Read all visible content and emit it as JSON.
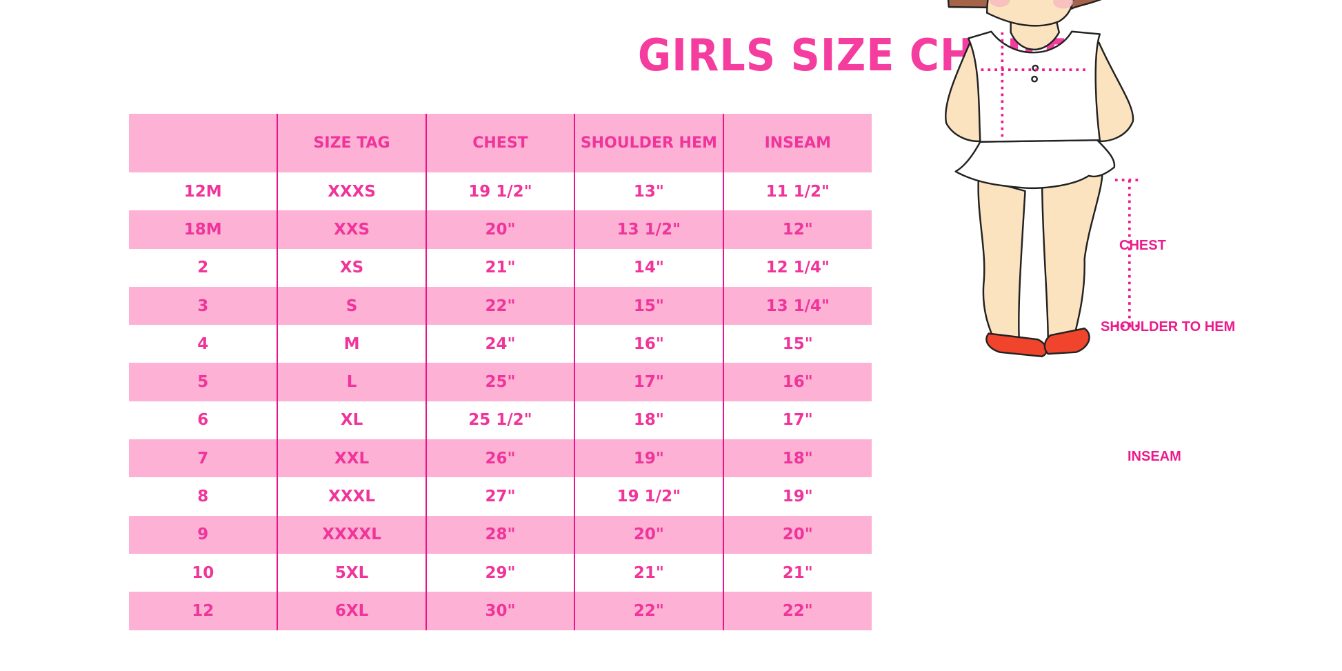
{
  "title": "GIRLS SIZE CHART",
  "table": {
    "headers": [
      "",
      "SIZE TAG",
      "CHEST",
      "SHOULDER HEM",
      "INSEAM"
    ],
    "rows": [
      [
        "12M",
        "XXXS",
        "19 1/2\"",
        "13\"",
        "11 1/2\""
      ],
      [
        "18M",
        "XXS",
        "20\"",
        "13 1/2\"",
        "12\""
      ],
      [
        "2",
        "XS",
        "21\"",
        "14\"",
        "12 1/4\""
      ],
      [
        "3",
        "S",
        "22\"",
        "15\"",
        "13 1/4\""
      ],
      [
        "4",
        "M",
        "24\"",
        "16\"",
        "15\""
      ],
      [
        "5",
        "L",
        "25\"",
        "17\"",
        "16\""
      ],
      [
        "6",
        "XL",
        "25 1/2\"",
        "18\"",
        "17\""
      ],
      [
        "7",
        "XXL",
        "26\"",
        "19\"",
        "18\""
      ],
      [
        "8",
        "XXXL",
        "27\"",
        "19 1/2\"",
        "19\""
      ],
      [
        "9",
        "XXXXL",
        "28\"",
        "20\"",
        "20\""
      ],
      [
        "10",
        "5XL",
        "29\"",
        "21\"",
        "21\""
      ],
      [
        "12",
        "6XL",
        "30\"",
        "22\"",
        "22\""
      ]
    ]
  },
  "figure": {
    "labels": {
      "chest": "CHEST",
      "shoulder_to_hem": "SHOULDER TO HEM",
      "inseam": "INSEAM"
    }
  },
  "colors": {
    "accent": "#f53d9f",
    "band": "#fcb1d5",
    "divider": "#e8158a"
  }
}
